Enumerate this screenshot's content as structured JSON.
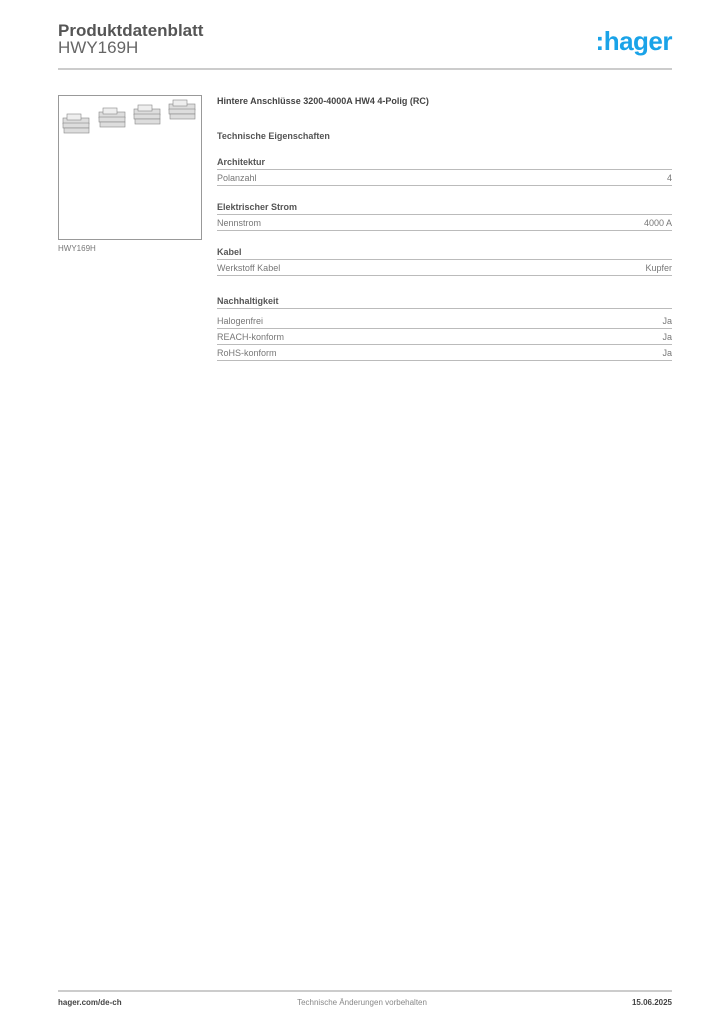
{
  "header": {
    "title": "Produktdatenblatt",
    "product_code": "HWY169H",
    "logo": ":hager",
    "logo_color": "#1aa3e8"
  },
  "image": {
    "caption": "HWY169H"
  },
  "main": {
    "headline": "Hintere Anschlüsse 3200-4000A HW4 4-Polig (RC)",
    "subheading": "Technische Eigenschaften",
    "sections": [
      {
        "title": "Architektur",
        "rows": [
          {
            "label": "Polanzahl",
            "value": "4"
          }
        ]
      },
      {
        "title": "Elektrischer Strom",
        "rows": [
          {
            "label": "Nennstrom",
            "value": "4000 A"
          }
        ]
      },
      {
        "title": "Kabel",
        "rows": [
          {
            "label": "Werkstoff Kabel",
            "value": "Kupfer"
          }
        ]
      },
      {
        "title": "Nachhaltigkeit",
        "rows": [
          {
            "label": "Halogenfrei",
            "value": "Ja"
          },
          {
            "label": "REACH-konform",
            "value": "Ja"
          },
          {
            "label": "RoHS-konform",
            "value": "Ja"
          }
        ]
      }
    ]
  },
  "footer": {
    "website": "hager.com/de-ch",
    "notice": "Technische Änderungen vorbehalten",
    "date": "15.06.2025"
  }
}
